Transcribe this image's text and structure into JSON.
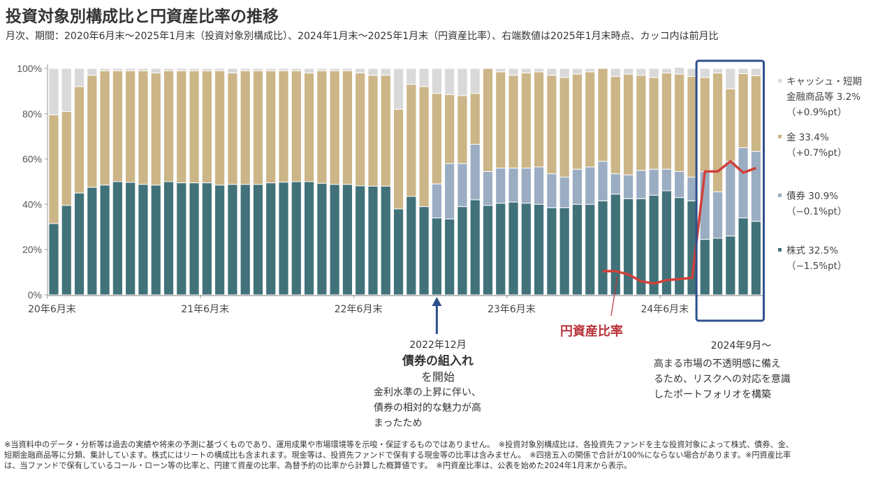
{
  "title": "投資対象別構成比と円資産比率の推移",
  "subtitle": "月次、期間：2020年6月末～2025年1月末（投資対象別構成比）、2024年1月末～2025年1月末（円資産比率）、右端数値は2025年1月末時点、カッコ内は前月比",
  "colors": {
    "stock": "#41727a",
    "bond": "#9badc3",
    "gold": "#ccb587",
    "cash": "#d9d9d9",
    "yen_ratio": "#d0413a",
    "highlight_box": "#2e4f8c",
    "arrow": "#2e4f8c"
  },
  "chart_data": {
    "type": "bar",
    "stacked": true,
    "title": "投資対象別構成比と円資産比率の推移",
    "xlabel": "",
    "ylabel": "",
    "ylim": [
      0,
      100
    ],
    "yticks": [
      "0%",
      "20%",
      "40%",
      "60%",
      "80%",
      "100%"
    ],
    "grid": false,
    "legend_position": "right",
    "x_tick_labels": [
      {
        "index": 0,
        "label": "20年6月末"
      },
      {
        "index": 12,
        "label": "21年6月末"
      },
      {
        "index": 24,
        "label": "22年6月末"
      },
      {
        "index": 36,
        "label": "23年6月末"
      },
      {
        "index": 48,
        "label": "24年6月末"
      }
    ],
    "categories": [
      "2020-06",
      "2020-07",
      "2020-08",
      "2020-09",
      "2020-10",
      "2020-11",
      "2020-12",
      "2021-01",
      "2021-02",
      "2021-03",
      "2021-04",
      "2021-05",
      "2021-06",
      "2021-07",
      "2021-08",
      "2021-09",
      "2021-10",
      "2021-11",
      "2021-12",
      "2022-01",
      "2022-02",
      "2022-03",
      "2022-04",
      "2022-05",
      "2022-06",
      "2022-07",
      "2022-08",
      "2022-09",
      "2022-10",
      "2022-11",
      "2022-12",
      "2023-01",
      "2023-02",
      "2023-03",
      "2023-04",
      "2023-05",
      "2023-06",
      "2023-07",
      "2023-08",
      "2023-09",
      "2023-10",
      "2023-11",
      "2023-12",
      "2024-01",
      "2024-02",
      "2024-03",
      "2024-04",
      "2024-05",
      "2024-06",
      "2024-07",
      "2024-08",
      "2024-09",
      "2024-10",
      "2024-11",
      "2024-12",
      "2025-01"
    ],
    "series": [
      {
        "name": "株式",
        "key": "stock",
        "values": [
          31.5,
          39.5,
          45,
          47.5,
          48.5,
          50,
          49.7,
          48.8,
          48.5,
          50,
          49.5,
          49.5,
          49.5,
          48.5,
          48.8,
          48.8,
          48.8,
          49.5,
          49.8,
          50,
          50,
          49.3,
          48.8,
          48.8,
          48.2,
          48,
          48,
          38,
          43.5,
          39,
          34,
          33.5,
          39,
          42,
          39.5,
          40.5,
          41,
          40.5,
          40,
          38.5,
          38.5,
          40,
          40,
          41.5,
          44.5,
          42.5,
          42.5,
          44,
          46,
          43,
          41.5,
          24.5,
          25,
          26,
          34,
          32.5
        ]
      },
      {
        "name": "債券",
        "key": "bond",
        "values": [
          0,
          0,
          0,
          0,
          0,
          0,
          0,
          0,
          0,
          0,
          0,
          0,
          0,
          0,
          0,
          0,
          0,
          0,
          0,
          0,
          0,
          0,
          0,
          0,
          0,
          0,
          0,
          0,
          0,
          0,
          15,
          24.5,
          19,
          24.5,
          15,
          15.5,
          15,
          15.5,
          16.5,
          15,
          13.5,
          15.5,
          16.5,
          17.5,
          9,
          10.5,
          12.5,
          11.5,
          9.5,
          11.5,
          10.5,
          30,
          20.5,
          33,
          31,
          30.9
        ]
      },
      {
        "name": "金",
        "key": "gold",
        "values": [
          48,
          41.5,
          47,
          49.5,
          50.5,
          49,
          49.3,
          50.2,
          49.5,
          49,
          49.5,
          49.5,
          49.5,
          50.5,
          49.2,
          50.2,
          50.2,
          49.5,
          49.2,
          49,
          48,
          49.7,
          50.2,
          50.2,
          49.8,
          49,
          49,
          44,
          49.5,
          53,
          40,
          30.5,
          30,
          22.5,
          45.5,
          42.5,
          41,
          42,
          42,
          43.5,
          44,
          42,
          42,
          41,
          43,
          44.5,
          42,
          40.5,
          42.5,
          43,
          44.5,
          41.5,
          52.5,
          32,
          32.7,
          33.4
        ]
      },
      {
        "name": "キャッシュ・短期金融商品等",
        "key": "cash",
        "values": [
          20.5,
          19,
          8,
          3,
          1,
          1,
          1,
          1,
          2,
          1,
          1,
          1,
          1,
          1,
          2,
          1,
          1,
          1,
          1,
          1,
          2,
          1,
          1,
          1,
          2,
          3,
          3,
          18,
          7,
          8,
          11,
          11.5,
          12,
          11,
          0,
          1.5,
          3,
          2,
          1.5,
          3,
          4,
          2.5,
          1.5,
          0,
          3.5,
          2.5,
          3,
          4,
          2,
          3,
          3.5,
          4,
          2,
          9,
          2.3,
          3.2
        ]
      }
    ],
    "line_series": {
      "name": "円資産比率",
      "start_index": 43,
      "values": [
        10.5,
        10.5,
        9,
        6,
        5,
        6.5,
        7,
        7.5,
        54.5,
        54.5,
        59,
        54,
        56
      ]
    },
    "legend": [
      {
        "key": "cash",
        "label_line1": "キャッシュ・短期",
        "label_line2": "金融商品等 3.2%",
        "change": "（+0.9%pt）"
      },
      {
        "key": "gold",
        "label_line1": "金 33.4%",
        "change": "（+0.7%pt）"
      },
      {
        "key": "bond",
        "label_line1": "債券 30.9%",
        "change": "（−0.1%pt）"
      },
      {
        "key": "stock",
        "label_line1": "株式 32.5%",
        "change": "（−1.5%pt）"
      }
    ],
    "annotations": {
      "bond_start": {
        "index": 30,
        "date": "2022年12月",
        "heading": "債券の組入れ",
        "heading2": "を開始",
        "body_lines": [
          "金利水準の上昇に伴い、",
          "債券の相対的な魅力が高",
          "まったため"
        ]
      },
      "yen_ratio_label": "円資産比率",
      "highlight": {
        "start_index": 51,
        "end_index": 55,
        "date": "2024年9月～",
        "body_lines": [
          "高まる市場の不透明感に備え",
          "るため、リスクへの対応を意識",
          "したポートフォリオを構築"
        ]
      }
    }
  },
  "footnote_lines": [
    "※当資料中のデータ・分析等は過去の実績や将来の予測に基づくものであり、運用成果や市場環境等を示唆・保証するものではありません。　※投資対象別構成比は、各投資先ファンドを主な投資対象によって株式、債券、金、",
    "短期金融商品等に分類、集計しています。株式にはリートの構成比も含まれます。現金等は、投資先ファンドで保有する現金等の比率は含みません。　※四捨五入の関係で合計が100%にならない場合があります。※円資産比率",
    "は、当ファンドで保有しているコール・ローン等の比率と、円建て資産の比率、為替予約の比率から計算した概算値です。　※円資産比率は、公表を始めた2024年1月末から表示。"
  ]
}
